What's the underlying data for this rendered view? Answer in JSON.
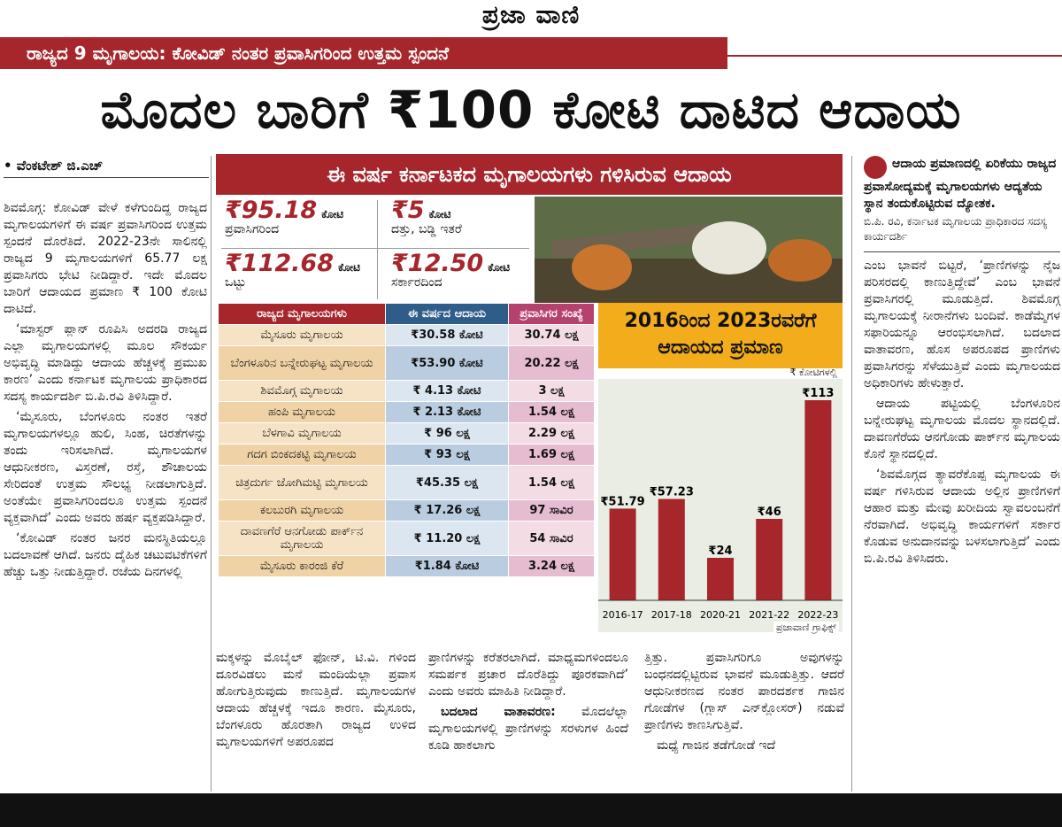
{
  "masthead": {
    "brand": "ಪ್ರಜಾ ವಾಣಿ"
  },
  "kicker": "ರಾಜ್ಯದ 9 ಮೃಗಾಲಯ: ಕೋವಿಡ್ ನಂತರ ಪ್ರವಾಸಿಗರಿಂದ ಉತ್ತಮ ಸ್ಪಂದನೆ",
  "headline": "ಮೊದಲ ಬಾರಿಗೆ ₹100 ಕೋಟಿ ದಾಟಿದ ಆದಾಯ",
  "byline": "• ವೆಂಕಟೇಶ್ ಜಿ.ಎಚ್",
  "left_column": [
    "ಶಿವಮೊಗ್ಗ: ಕೋವಿಡ್ ವೇಳೆ ಕಳೆಗುಂದಿದ್ದ ರಾಜ್ಯದ ಮೃಗಾಲಯಗಳಿಗೆ ಈ ವರ್ಷ ಪ್ರವಾಸಿಗರಿಂದ ಉತ್ತಮ ಸ್ಪಂದನೆ ದೊರೆತಿದೆ. 2022-23ನೇ ಸಾಲಿನಲ್ಲಿ ರಾಜ್ಯದ 9 ಮೃಗಾಲಯಗಳಿಗೆ 65.77 ಲಕ್ಷ ಪ್ರವಾಸಿಗರು ಭೇಟಿ ನೀಡಿದ್ದಾರೆ. ಇದೇ ಮೊದಲ ಬಾರಿಗೆ ಆದಾಯದ ಪ್ರಮಾಣ ₹ 100 ಕೋಟಿ ದಾಟಿದೆ.",
    "‘ಮಾಸ್ಟರ್ ಪ್ಲಾನ್ ರೂಪಿಸಿ ಅದರಡಿ ರಾಜ್ಯದ ಎಲ್ಲಾ ಮೃಗಾಲಯಗಳಲ್ಲಿ ಮೂಲ ಸೌಕರ್ಯ ಅಭಿವೃದ್ಧಿ ಮಾಡಿದ್ದು ಆದಾಯ ಹೆಚ್ಚಳಕ್ಕೆ ಪ್ರಮುಖ ಕಾರಣ’ ಎಂದು ಕರ್ನಾಟಕ ಮೃಗಾಲಯ ಪ್ರಾಧಿಕಾರದ ಸದಸ್ಯ ಕಾರ್ಯದರ್ಶಿ ಬಿ.ಪಿ.ರವಿ ತಿಳಿಸಿದ್ದಾರೆ.",
    "‘ಮೈಸೂರು, ಬೆಂಗಳೂರು ನಂತರ ಇತರೆ ಮೃಗಾಲಯಗಳಲ್ಲೂ ಹುಲಿ, ಸಿಂಹ, ಚಿರತೆಗಳನ್ನು ತಂದು ಇರಿಸಲಾಗಿದೆ. ಮೃಗಾಲಯಗಳ ಆಧುನೀಕರಣ, ವಿಸ್ತರಣೆ, ರಸ್ತೆ, ಶೌಚಾಲಯ ಸೇರಿದಂತೆ ಉತ್ತಮ ಸೌಲಭ್ಯ ನೀಡಲಾಗುತ್ತಿದೆ. ಅಂತೆಯೇ ಪ್ರವಾಸಿಗರಿಂದಲೂ ಉತ್ತಮ ಸ್ಪಂದನೆ ವ್ಯಕ್ತವಾಗಿದೆ’ ಎಂದು ಅವರು ಹರ್ಷ ವ್ಯಕ್ತಪಡಿಸಿದ್ದಾರೆ.",
    "‘ಕೋವಿಡ್ ನಂತರ ಜನರ ಮನಸ್ಥಿತಿಯಲ್ಲೂ ಬದಲಾವಣೆ ಆಗಿದೆ. ಜನರು ದೈಹಿಕ ಚಟುವಟಿಕೆಗಳಿಗೆ ಹೆಚ್ಚು ಒತ್ತು ನೀಡುತ್ತಿದ್ದಾರೆ. ರಜೆಯ ದಿನಗಳಲ್ಲಿ"
  ],
  "graphic": {
    "title": "ಈ ವರ್ಷ ಕರ್ನಾಟಕದ ಮೃಗಾಲಯಗಳು ಗಳಿಸಿರುವ ಆದಾಯ",
    "stats": [
      {
        "value": "₹95.18",
        "unit": "ಕೋಟಿ",
        "label": "ಪ್ರವಾಸಿಗರಿಂದ"
      },
      {
        "value": "₹5",
        "unit": "ಕೋಟಿ",
        "label": "ದತ್ತು, ಬಡ್ಡಿ ಇತರೆ"
      },
      {
        "value": "₹112.68",
        "unit": "ಕೋಟಿ",
        "label": "ಒಟ್ಟು"
      },
      {
        "value": "₹12.50",
        "unit": "ಕೋಟಿ",
        "label": "ಸರ್ಕಾರದಿಂದ"
      }
    ],
    "table": {
      "headers": [
        "ರಾಜ್ಯದ ಮೃಗಾಲಯಗಳು",
        "ಈ ವರ್ಷದ ಆದಾಯ",
        "ಪ್ರವಾಸಿಗರ ಸಂಖ್ಯೆ"
      ],
      "rows": [
        [
          "ಮೈಸೂರು ಮೃಗಾಲಯ",
          "₹30.58 ಕೋಟಿ",
          "30.74 ಲಕ್ಷ"
        ],
        [
          "ಬೆಂಗಳೂರಿನ ಬನ್ನೇರುಘಟ್ಟ ಮೃಗಾಲಯ",
          "₹53.90 ಕೋಟಿ",
          "20.22 ಲಕ್ಷ"
        ],
        [
          "ಶಿವಮೊಗ್ಗ ಮೃಗಾಲಯ",
          "₹ 4.13 ಕೋಟಿ",
          "3 ಲಕ್ಷ"
        ],
        [
          "ಹಂಪಿ ಮೃಗಾಲಯ",
          "₹ 2.13 ಕೋಟಿ",
          "1.54 ಲಕ್ಷ"
        ],
        [
          "ಬೆಳಗಾವಿ ಮೃಗಾಲಯ",
          "₹ 96 ಲಕ್ಷ",
          "2.29 ಲಕ್ಷ"
        ],
        [
          "ಗದಗ ಬಿಂಕದಕಟ್ಟಿ ಮೃಗಾಲಯ",
          "₹ 93 ಲಕ್ಷ",
          "1.69 ಲಕ್ಷ"
        ],
        [
          "ಚಿತ್ರದುರ್ಗ ಜೋಗಿಮಟ್ಟಿ ಮೃಗಾಲಯ",
          "₹45.35 ಲಕ್ಷ",
          "1.54 ಲಕ್ಷ"
        ],
        [
          "ಕಲಬುರಗಿ ಮೃಗಾಲಯ",
          "₹ 17.26 ಲಕ್ಷ",
          "97 ಸಾವಿರ"
        ],
        [
          "ದಾವಣಗೆರೆ ಆನಗೋಡು ಪಾರ್ಕ್‌ನ ಮೃಗಾಲಯ",
          "₹ 11.20 ಲಕ್ಷ",
          "54 ಸಾವಿರ"
        ],
        [
          "ಮೈಸೂರು ಕಾರಂಜಿ ಕೆರೆ",
          "₹1.84 ಕೋಟಿ",
          "3.24 ಲಕ್ಷ"
        ]
      ]
    },
    "credit": "ಪ್ರಜಾವಾಣಿ ಗ್ರಾಫಿಕ್ಸ್"
  },
  "chart_data": {
    "type": "bar",
    "title": "2016ರಿಂದ 2023ರವರೆಗೆ ಆದಾಯದ ಪ್ರಮಾಣ",
    "unit_label": "₹ ಕೋಟಿಗಳಲ್ಲಿ",
    "categories": [
      "2016-17",
      "2017-18",
      "2020-21",
      "2021-22",
      "2022-23"
    ],
    "values": [
      51.79,
      57.23,
      24,
      46,
      113
    ],
    "value_labels": [
      "₹51.79",
      "₹57.23",
      "₹24",
      "₹46",
      "₹113"
    ],
    "ylim": [
      0,
      113
    ],
    "bar_color": "#a6262b"
  },
  "right_column": {
    "quote": "ಆದಾಯ ಪ್ರಮಾಣದಲ್ಲಿ ಏರಿಕೆಯು ರಾಜ್ಯದ ಪ್ರವಾಸೋದ್ಯಮಕ್ಕೆ ಮೃಗಾಲಯಗಳು ಆದ್ಯತೆಯ ಸ್ಥಾನ ತಂದುಕೊಟ್ಟಿರುವ ದ್ಯೋತಕ.",
    "quote_sig": "ಬಿ.ಪಿ. ರವಿ, ಕರ್ನಾಟಕ ಮೃಗಾಲಯ ಪ್ರಾಧಿಕಾರದ ಸದಸ್ಯ ಕಾರ್ಯದರ್ಶಿ",
    "paragraphs": [
      "ಎಂಬ ಭಾವನೆ ಬಿಟ್ಟರೆ, ‘ಪ್ರಾಣಿಗಳನ್ನು ನೈಜ ಪರಿಸರದಲ್ಲಿ ಕಾಣುತ್ತಿದ್ದೇವೆ’ ಎಂಬ ಭಾವನೆ ಪ್ರವಾಸಿಗರಲ್ಲಿ ಮೂಡುತ್ತಿದೆ. ಶಿವಮೊಗ್ಗ ಮೃಗಾಲಯಕ್ಕೆ ನೀರಾನೆಗಳು ಬಂದಿವೆ. ಕಾಡೆಮ್ಮೆಗಳ ಸಫಾರಿಯನ್ನೂ ಆರಂಭಿಸಲಾಗಿದೆ. ಬದಲಾದ ವಾತಾವರಣ, ಹೊಸ ಅಪರೂಪದ ಪ್ರಾಣಿಗಳು ಪ್ರವಾಸಿಗರನ್ನು ಸೆಳೆಯುತ್ತಿವೆ ಎಂದು ಮೃಗಾಲಯದ ಅಧಿಕಾರಿಗಳು ಹೇಳುತ್ತಾರೆ.",
      "ಆದಾಯ ಪಟ್ಟಿಯಲ್ಲಿ ಬೆಂಗಳೂರಿನ ಬನ್ನೇರುಘಟ್ಟ ಮೃಗಾಲಯ ಮೊದಲ ಸ್ಥಾನದಲ್ಲಿದೆ. ದಾವಣಗೆರೆಯ ಆನಗೋಡು ಪಾರ್ಕ್‌ನ ಮೃಗಾಲಯ ಕೊನೆ ಸ್ಥಾನದಲ್ಲಿದೆ.",
      "‘ಶಿವಮೊಗ್ಗದ ತ್ಯಾವರೆಕೊಪ್ಪ ಮೃಗಾಲಯ ಈ ವರ್ಷ ಗಳಿಸಿರುವ ಆದಾಯ ಅಲ್ಲಿನ ಪ್ರಾಣಿಗಳಿಗೆ ಆಹಾರ ಮತ್ತು ಮೇವು ಖರೀದಿಯ ಸ್ವಾವಲಂಬನೆಗೆ ನೆರವಾಗಿದೆ. ಅಭಿವೃದ್ಧಿ ಕಾರ್ಯಗಳಿಗೆ ಸರ್ಕಾರ ಕೊಡುವ ಅನುದಾನವನ್ನು ಬಳಸಲಾಗುತ್ತಿದೆ’ ಎಂದು ಬಿ.ಪಿ.ರವಿ ತಿಳಿಸಿದರು."
    ]
  },
  "bottom_columns": [
    "ಮಕ್ಕಳನ್ನು ಮೊಬೈಲ್ ಫೋನ್, ಟಿ.ವಿ. ಗಳಿಂದ ದೂರವಿಡಲು ಮನೆ ಮಂದಿಯೆಲ್ಲಾ ಪ್ರವಾಸ ಹೋಗುತ್ತಿರುವುದು ಕಾಣುತ್ತಿದೆ. ಮೃಗಾಲಯಗಳ ಆದಾಯ ಹೆಚ್ಚಳಕ್ಕೆ ಇದೂ ಕಾರಣ. ಮೈಸೂರು, ಬೆಂಗಳೂರು ಹೊರತಾಗಿ ರಾಜ್ಯದ ಉಳಿದ ಮೃಗಾಲಯಗಳಿಗೆ ಅಪರೂಪದ",
    "ಪ್ರಾಣಿಗಳನ್ನು ಕರೆತರಲಾಗಿದೆ. ಮಾಧ್ಯಮಗಳಿಂದಲೂ ಸಮರ್ಪಕ ಪ್ರಚಾರ ದೊರೆತಿದ್ದು ಪೂರಕವಾಗಿದೆ’ ಎಂದು ಅವರು ಮಾಹಿತಿ ನೀಡಿದ್ದಾರೆ.",
    "ತ್ತಿತ್ತು. ಪ್ರವಾಸಿಗರಿಗೂ ಅವುಗಳನ್ನು ಬಂಧನದಲ್ಲಿಟ್ಟಿರುವ ಭಾವನೆ ಮೂಡುತ್ತಿತ್ತು. ಆದರೆ ಆಧುನೀಕರಣದ ನಂತರ ಪಾರದರ್ಶಕ ಗಾಜಿನ ಗೋಡೆಗಳ (ಗ್ಲಾಸ್ ಎನ್‌ಕ್ಲೋಸರ್) ನಡುವೆ ಪ್ರಾಣಿಗಳು ಕಾಣಸಿಗುತ್ತಿವೆ."
  ],
  "bottom_col2_subhead": "ಬದಲಾದ ವಾತಾವರಣ:",
  "bottom_col2_para2": "ಮೊದಲೆಲ್ಲಾ ಮೃಗಾಲಯಗಳಲ್ಲಿ ಪ್ರಾಣಿಗಳನ್ನು ಸರಳುಗಳ ಹಿಂದೆ ಕೂಡಿ ಹಾಕಲಾಗು",
  "bottom_col3_para2": "ಮಧ್ಯೆ ಗಾಜಿನ ತಡೆಗೋಡೆ ಇದೆ"
}
